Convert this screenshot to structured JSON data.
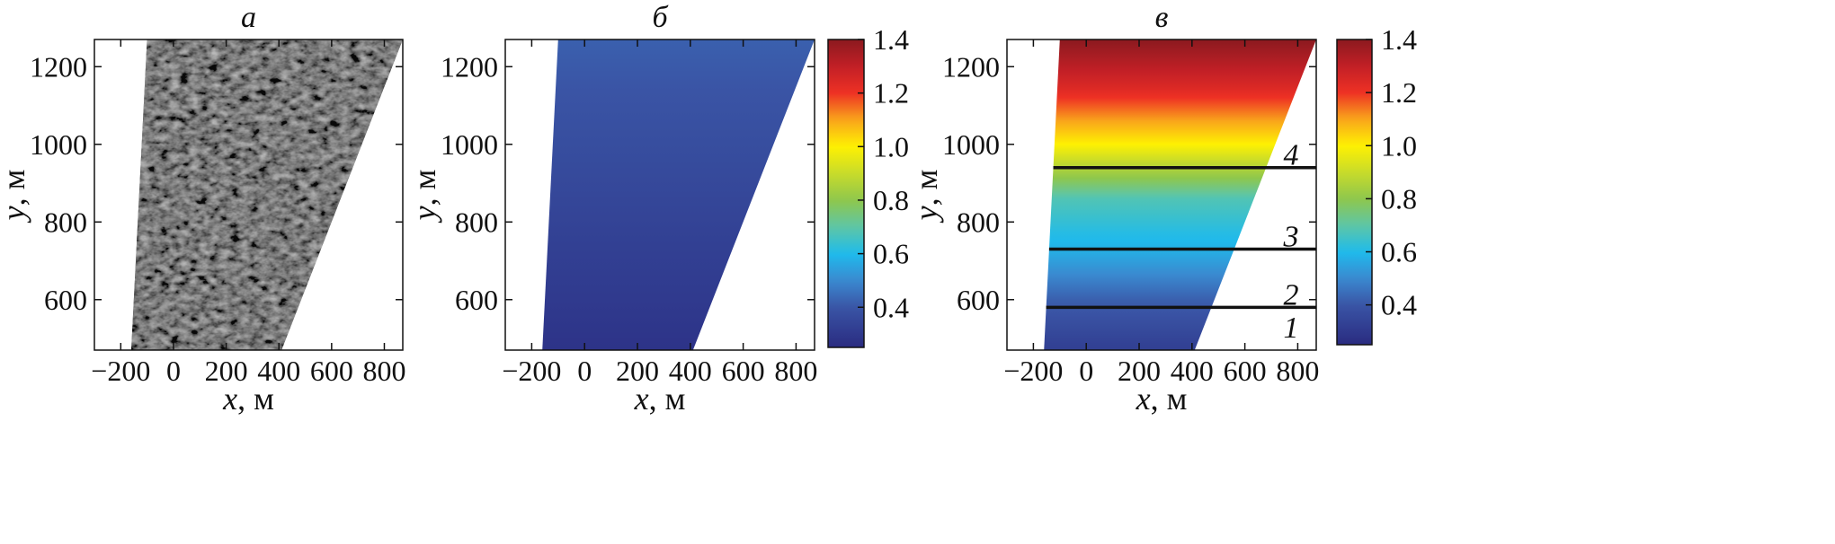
{
  "chart_data": [
    {
      "panel": "а",
      "type": "heatmap",
      "title": "а",
      "content": "grayscale sea-surface image (trapezoidal footprint)",
      "xlabel_var": "x",
      "xlabel_unit": "м",
      "ylabel_var": "y",
      "ylabel_unit": "м",
      "xlim": [
        -300,
        870
      ],
      "ylim": [
        470,
        1270
      ],
      "xticks": [
        -200,
        0,
        200,
        400,
        600,
        800
      ],
      "yticks": [
        600,
        800,
        1000,
        1200
      ],
      "footprint": [
        [
          -100,
          1270
        ],
        [
          870,
          1270
        ],
        [
          410,
          470
        ],
        [
          -160,
          470
        ]
      ]
    },
    {
      "panel": "б",
      "type": "heatmap",
      "title": "б",
      "xlabel_var": "x",
      "xlabel_unit": "м",
      "ylabel_var": "y",
      "ylabel_unit": "м",
      "xlim": [
        -300,
        870
      ],
      "ylim": [
        470,
        1270
      ],
      "xticks": [
        -200,
        0,
        200,
        400,
        600,
        800
      ],
      "yticks": [
        600,
        800,
        1000,
        1200
      ],
      "footprint": [
        [
          -100,
          1270
        ],
        [
          870,
          1270
        ],
        [
          410,
          470
        ],
        [
          -160,
          470
        ]
      ],
      "value_gradient": [
        [
          470,
          0.28
        ],
        [
          1270,
          0.42
        ]
      ],
      "colorbar": {
        "min": 0.25,
        "max": 1.4,
        "ticks": [
          "0.4",
          "0.6",
          "0.8",
          "1.0",
          "1.2",
          "1.4"
        ]
      }
    },
    {
      "panel": "в",
      "type": "heatmap",
      "title": "в",
      "xlabel_var": "x",
      "xlabel_unit": "м",
      "ylabel_var": "y",
      "ylabel_unit": "м",
      "xlim": [
        -300,
        870
      ],
      "ylim": [
        470,
        1270
      ],
      "xticks": [
        -200,
        0,
        200,
        400,
        600,
        800
      ],
      "yticks": [
        600,
        800,
        1000,
        1200
      ],
      "footprint": [
        [
          -100,
          1270
        ],
        [
          870,
          1270
        ],
        [
          410,
          470
        ],
        [
          -160,
          470
        ]
      ],
      "value_gradient": [
        [
          470,
          0.32
        ],
        [
          600,
          0.42
        ],
        [
          730,
          0.58
        ],
        [
          860,
          0.68
        ],
        [
          940,
          0.86
        ],
        [
          1000,
          1.0
        ],
        [
          1060,
          1.1
        ],
        [
          1150,
          1.25
        ],
        [
          1270,
          1.4
        ]
      ],
      "colorbar": {
        "min": 0.25,
        "max": 1.4,
        "ticks": [
          "0.4",
          "0.6",
          "0.8",
          "1.0",
          "1.2",
          "1.4"
        ]
      },
      "lines": [
        {
          "label": "1",
          "y": null,
          "label_y": 530
        },
        {
          "label": "2",
          "y": 580,
          "label_y": 615
        },
        {
          "label": "3",
          "y": 730,
          "label_y": 765
        },
        {
          "label": "4",
          "y": 940,
          "label_y": 975
        }
      ]
    }
  ],
  "colors": {
    "stops": [
      {
        "v": 0.25,
        "c": "#2a2b80"
      },
      {
        "v": 0.4,
        "c": "#3a55a6"
      },
      {
        "v": 0.5,
        "c": "#3a8ad0"
      },
      {
        "v": 0.6,
        "c": "#1fbbec"
      },
      {
        "v": 0.7,
        "c": "#5ec6a6"
      },
      {
        "v": 0.8,
        "c": "#8fc74c"
      },
      {
        "v": 0.9,
        "c": "#c8dc2a"
      },
      {
        "v": 1.0,
        "c": "#fef102"
      },
      {
        "v": 1.1,
        "c": "#f9a51b"
      },
      {
        "v": 1.2,
        "c": "#ee3124"
      },
      {
        "v": 1.3,
        "c": "#c21f26"
      },
      {
        "v": 1.4,
        "c": "#8b1a1f"
      }
    ]
  }
}
